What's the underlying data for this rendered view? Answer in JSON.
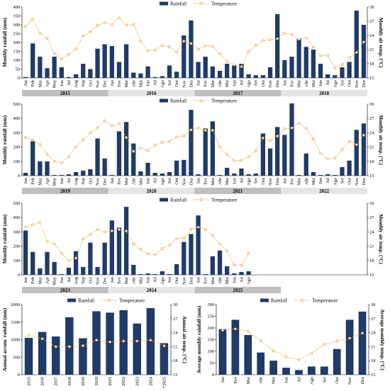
{
  "colors": {
    "bar": "#1f3b66",
    "line": "#e5a23a",
    "year_band_dark": "#bfbfbf",
    "year_band_light": "#e5e5e5"
  },
  "legend": {
    "bar_label": "Rainfall",
    "line_label": "Temperature"
  },
  "chart_data": [
    {
      "type": "bar",
      "id": "2015-2018",
      "ylabel": "Monthly rainfall (mm)",
      "y2label": "Monthly air temp. (°C)",
      "ylim": [
        0,
        400
      ],
      "y2lim": [
        15,
        30
      ],
      "yticks": [
        0,
        50,
        100,
        150,
        200,
        250,
        300,
        350,
        400
      ],
      "y2ticks": [
        15,
        18,
        21,
        24,
        27,
        30
      ],
      "month_labels": [
        "Jan",
        "Feb",
        "Mar",
        "Apr",
        "May",
        "Jun",
        "Jul",
        "Aug",
        "Sep",
        "Oct",
        "Nov",
        "Dec",
        "Jan",
        "Fev",
        "Mar",
        "Abr",
        "Mai",
        "Jun",
        "Jul",
        "Ago",
        "Set",
        "Out",
        "Nov",
        "Dez",
        "Jan",
        "Fev",
        "Mar",
        "Abr",
        "Mai",
        "Jun",
        "Jul",
        "Ago",
        "Set",
        "Out",
        "Nov",
        "Dez",
        "Jan",
        "Fev",
        "Mar",
        "Abr",
        "Mai",
        "Jun",
        "Jul",
        "Ago",
        "Set",
        "Out",
        "Nov",
        "Dez"
      ],
      "years": [
        "2015",
        "2016",
        "2017",
        "2018"
      ],
      "rainfall": [
        5,
        195,
        120,
        55,
        120,
        60,
        5,
        20,
        80,
        50,
        165,
        190,
        180,
        90,
        190,
        30,
        25,
        65,
        5,
        10,
        70,
        35,
        240,
        325,
        90,
        120,
        65,
        40,
        80,
        70,
        80,
        20,
        15,
        15,
        60,
        360,
        100,
        120,
        220,
        175,
        160,
        80,
        20,
        15,
        60,
        90,
        380,
        300
      ],
      "temperature": [
        25.9,
        27.4,
        24.5,
        23.4,
        20.2,
        19.0,
        20.0,
        21.1,
        23.9,
        24.8,
        26.1,
        26.7,
        26.3,
        27.7,
        26.2,
        26.3,
        22.8,
        20.8,
        20.9,
        21.9,
        21.6,
        20.5,
        22.8,
        22.3,
        21.1,
        21.8,
        21.7,
        20.1,
        18.5,
        17.8,
        17.4,
        20.6,
        21.9,
        22.9,
        23.1,
        23.3,
        24.5,
        24.2,
        23.2,
        23.5,
        21.5,
        19.7,
        19.8,
        17.1,
        17.8,
        19.3,
        20.4,
        22.6
      ]
    },
    {
      "type": "bar",
      "id": "2019-2022",
      "ylabel": "Monthly rainfall (mm)",
      "y2label": "Monthly air temp. (°C)",
      "ylim": [
        0,
        500
      ],
      "y2lim": [
        15,
        30
      ],
      "yticks": [
        0,
        100,
        200,
        300,
        400,
        500
      ],
      "y2ticks": [
        15,
        18,
        21,
        24,
        27,
        30
      ],
      "month_labels": [
        "Jan",
        "Feb",
        "Mar",
        "Apr",
        "May",
        "Jun",
        "Jul",
        "Aug",
        "Sep",
        "Oct",
        "Nov",
        "Dec",
        "Jan",
        "Fev",
        "Mar",
        "Abr",
        "Mai",
        "Jun",
        "Jul",
        "Ago",
        "Set",
        "Out",
        "Nov",
        "Dez",
        "Jan",
        "Fev",
        "Mar",
        "Abr",
        "Mai",
        "Jun",
        "Jul",
        "Ago",
        "Set",
        "Out",
        "Nov",
        "Dez",
        "Jan",
        "Fev",
        "Mar",
        "Abr",
        "Mai",
        "Jun",
        "Jul",
        "Ago",
        "Set",
        "Out",
        "Nov",
        "Dez"
      ],
      "years": [
        "2019",
        "2020",
        "2021",
        "2022"
      ],
      "rainfall": [
        20,
        240,
        100,
        100,
        5,
        5,
        10,
        25,
        35,
        45,
        260,
        120,
        5,
        310,
        375,
        225,
        30,
        90,
        20,
        15,
        25,
        105,
        110,
        460,
        10,
        330,
        380,
        5,
        55,
        15,
        50,
        10,
        15,
        295,
        190,
        340,
        285,
        505,
        5,
        155,
        25,
        5,
        10,
        5,
        60,
        105,
        320,
        365
      ],
      "temperature": [
        23.0,
        22.5,
        21.5,
        19.5,
        18.0,
        17.7,
        19.0,
        21.0,
        22.5,
        24.0,
        25.0,
        26.5,
        25.5,
        26.0,
        23.0,
        20.1,
        20.8,
        20.3,
        21.4,
        22.0,
        22.2,
        23.1,
        23.3,
        24.6,
        25.0,
        24.5,
        24.5,
        21.0,
        19.4,
        18.2,
        18.2,
        19.0,
        20.2,
        22.9,
        22.4,
        23.3,
        24.8,
        25.0,
        26.0,
        24.9,
        22.7,
        19.7,
        18.5,
        18.7,
        20.5,
        22.2,
        21.5,
        23.5
      ]
    },
    {
      "type": "bar",
      "id": "2023-2025",
      "ylabel": "Monthly rainfall (mm)",
      "y2label": "Monthly air temp. (°C)",
      "ylim": [
        0,
        500
      ],
      "y2lim": [
        15,
        30
      ],
      "yticks": [
        0,
        100,
        200,
        300,
        400,
        500
      ],
      "y2ticks": [
        15,
        18,
        21,
        24,
        27,
        30
      ],
      "month_labels": [
        "Jan",
        "Feb",
        "Mar",
        "Apr",
        "May",
        "Jun",
        "Jul",
        "Aug",
        "Sep",
        "Oct",
        "Nov",
        "Dec",
        "Jan",
        "Fev",
        "Mar",
        "Abr",
        "Mai",
        "Jun",
        "Jul",
        "Ago",
        "Set",
        "Out",
        "Nov",
        "Dez",
        "Jan",
        "Fev",
        "Mar",
        "Abr",
        "Mai",
        "Jun",
        "Jul",
        "Ago"
      ],
      "years": [
        "2023",
        "2024",
        "2025"
      ],
      "rainfall": [
        310,
        160,
        45,
        160,
        90,
        5,
        50,
        165,
        55,
        225,
        55,
        225,
        380,
        330,
        475,
        70,
        5,
        10,
        5,
        25,
        5,
        75,
        230,
        285,
        415,
        5,
        130,
        170,
        60,
        10,
        20,
        25
      ],
      "temperature": [
        25.0,
        25.5,
        26.0,
        22.0,
        21.5,
        19.5,
        18.0,
        18.5,
        22.5,
        23.5,
        24.5,
        24.0,
        24.2,
        24.5,
        24.2,
        21.5,
        20.3,
        19.4,
        19.2,
        20.5,
        21.2,
        22.6,
        22.7,
        24.5,
        25.0,
        24.5,
        23.2,
        21.5,
        20.0,
        17.1,
        17.0,
        19.5
      ]
    },
    {
      "type": "bar",
      "id": "annual",
      "ylabel": "Annual accum. rainfall (mm)",
      "y2label": "Annual air temp. (°C)",
      "ylim": [
        0,
        2000
      ],
      "y2lim": [
        15,
        30
      ],
      "yticks": [
        0,
        500,
        1000,
        1500,
        2000
      ],
      "y2ticks": [
        15,
        18,
        21,
        24,
        27,
        30
      ],
      "categories": [
        "2015",
        "2016",
        "2017",
        "2018",
        "2019",
        "2020",
        "2021",
        "2022",
        "2023",
        "2024",
        "*2025"
      ],
      "rainfall": [
        1050,
        1220,
        1090,
        1640,
        1040,
        1810,
        1770,
        1840,
        1460,
        1900,
        900
      ],
      "temperature": [
        23.4,
        22.7,
        21.0,
        21.0,
        21.2,
        22.4,
        22.0,
        22.2,
        22.2,
        22.4,
        21.2
      ]
    },
    {
      "type": "bar",
      "id": "monthly-average",
      "ylabel": "Average monthly rainfall (mm)",
      "y2label": "Average monthly temp. (°C)",
      "ylim": [
        0,
        300
      ],
      "y2lim": [
        15,
        30
      ],
      "yticks": [
        0,
        50,
        100,
        150,
        200,
        250,
        300
      ],
      "y2ticks": [
        15,
        18,
        21,
        24,
        27,
        30
      ],
      "categories": [
        "Jan",
        "Fev",
        "Mar",
        "Abr",
        "Mai",
        "Jun",
        "Jul",
        "Ago",
        "Set",
        "Out",
        "Nov",
        "Dez"
      ],
      "rainfall": [
        195,
        235,
        170,
        95,
        60,
        30,
        20,
        35,
        35,
        110,
        235,
        270
      ],
      "temperature": [
        24.5,
        24.8,
        24.3,
        22.3,
        20.1,
        18.8,
        18.2,
        19.6,
        21.5,
        22.2,
        22.8,
        23.9
      ]
    }
  ]
}
